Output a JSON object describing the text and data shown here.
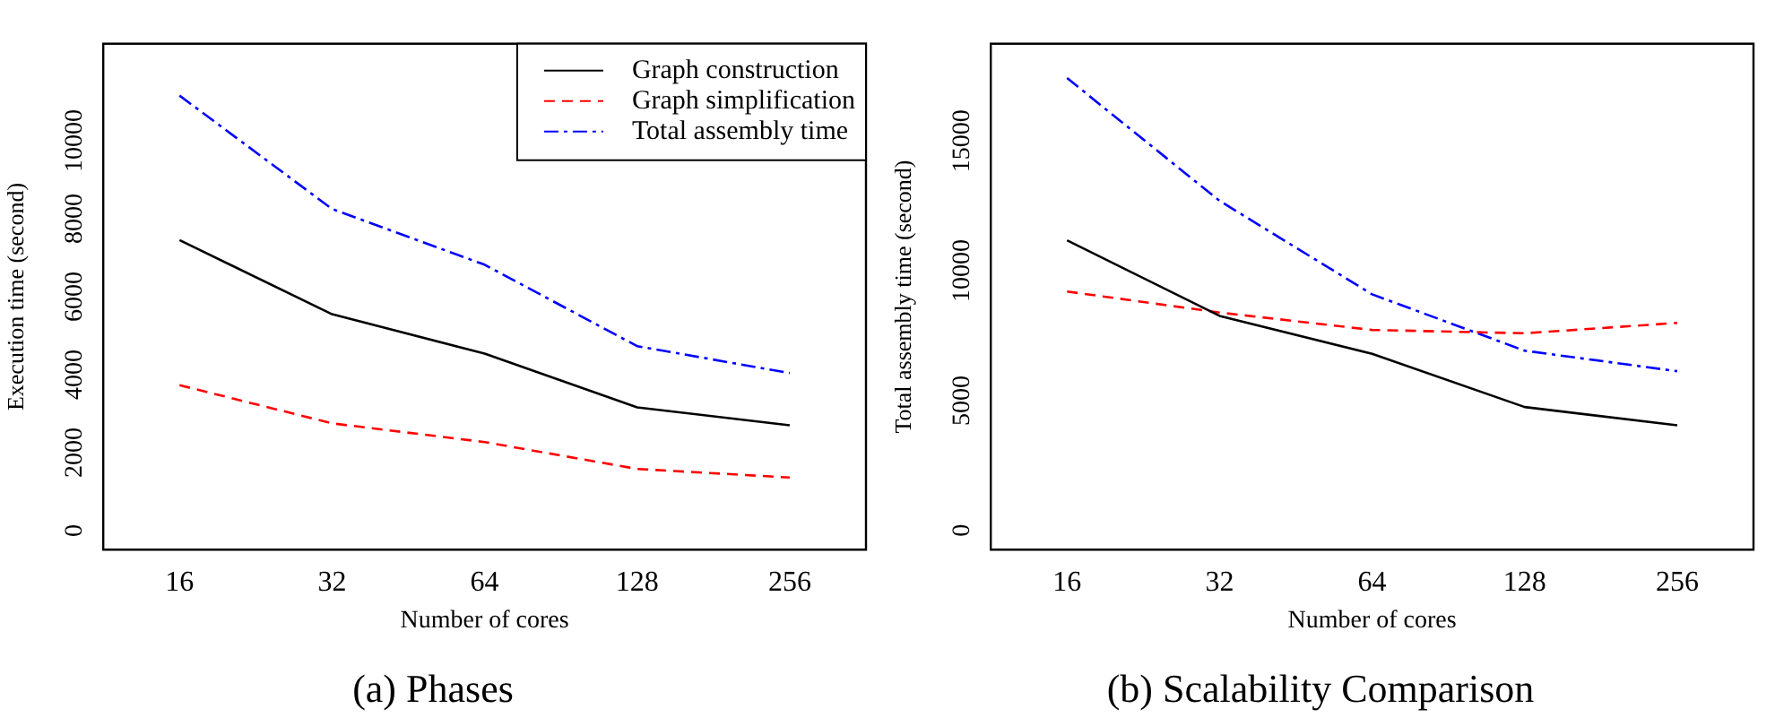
{
  "chart_data": [
    {
      "type": "line",
      "title": "(a) Phases",
      "xlabel": "Number of cores",
      "ylabel": "Execution time (second)",
      "categories": [
        "16",
        "32",
        "64",
        "128",
        "256"
      ],
      "series": [
        {
          "name": "Graph construction",
          "color": "#000000",
          "line_style": "solid",
          "values": [
            7450,
            5550,
            4540,
            3160,
            2700
          ]
        },
        {
          "name": "Graph simplification",
          "color": "#ff0000",
          "line_style": "dashed",
          "values": [
            3730,
            2750,
            2270,
            1580,
            1360
          ]
        },
        {
          "name": "Total assembly time",
          "color": "#0000ff",
          "line_style": "dashdot",
          "values": [
            11160,
            8250,
            6820,
            4730,
            4040
          ]
        }
      ],
      "ylim": [
        -490,
        12490
      ],
      "yticks": [
        0,
        2000,
        4000,
        6000,
        8000,
        10000
      ],
      "grid": false,
      "legend": "top right",
      "marker": "none"
    },
    {
      "type": "line",
      "title": "(b) Scalability Comparison",
      "xlabel": "Number of cores",
      "ylabel": "Total assembly time (second)",
      "categories": [
        "16",
        "32",
        "64",
        "128",
        "256"
      ],
      "series": [
        {
          "color": "#000000",
          "line_style": "solid",
          "values": [
            11170,
            8260,
            6800,
            4750,
            4050
          ]
        },
        {
          "color": "#ff0000",
          "line_style": "dashed",
          "values": [
            9200,
            8390,
            7720,
            7590,
            7990
          ]
        },
        {
          "color": "#0000ff",
          "line_style": "dashdot",
          "values": [
            17420,
            12690,
            9090,
            6920,
            6130
          ]
        }
      ],
      "ylim": [
        -740,
        18740
      ],
      "yticks": [
        0,
        5000,
        10000,
        15000
      ],
      "grid": false,
      "marker": "none"
    }
  ]
}
